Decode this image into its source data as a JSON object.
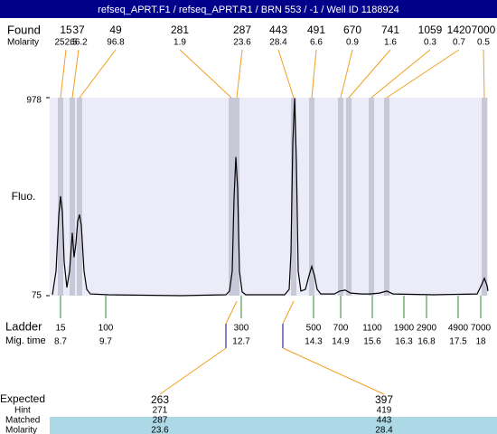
{
  "chart_data": {
    "type": "line",
    "title": "refseq_APRT.F1 / refseq_APRT.R1 / BRN 553 / -1 / Well ID 1188924",
    "y_label": "Fluo.",
    "ylim": [
      75,
      978
    ],
    "yticks": [
      75,
      978
    ],
    "xlim": [
      8.46,
      18.16
    ],
    "xticks": [
      8.7,
      9.7,
      12.7,
      14.3,
      14.9,
      15.6,
      16.3,
      16.8,
      17.5,
      18
    ],
    "color": "#000000",
    "x": [
      8.52,
      8.6,
      8.66,
      8.7,
      8.74,
      8.78,
      8.84,
      8.9,
      8.96,
      9.0,
      9.04,
      9.08,
      9.12,
      9.16,
      9.22,
      9.28,
      9.36,
      9.76,
      11.36,
      12.36,
      12.44,
      12.5,
      12.54,
      12.58,
      12.62,
      12.66,
      12.72,
      12.8,
      13.66,
      13.76,
      13.8,
      13.84,
      13.88,
      13.92,
      13.96,
      14.02,
      14.12,
      14.2,
      14.26,
      14.32,
      14.38,
      14.46,
      14.76,
      14.88,
      15.0,
      15.12,
      15.36,
      15.56,
      15.76,
      15.92,
      16.06,
      16.96,
      17.92,
      18.02,
      18.08,
      18.14,
      18.16
    ],
    "values": [
      79,
      187,
      437,
      529,
      458,
      229,
      112,
      187,
      362,
      250,
      312,
      416,
      445,
      395,
      187,
      104,
      83,
      79,
      75,
      79,
      96,
      187,
      520,
      707,
      562,
      187,
      92,
      79,
      79,
      104,
      271,
      770,
      975,
      687,
      187,
      96,
      104,
      167,
      208,
      167,
      104,
      83,
      83,
      96,
      100,
      87,
      83,
      83,
      87,
      96,
      83,
      79,
      83,
      125,
      154,
      121,
      96
    ],
    "found": {
      "label": "Found",
      "sizes": [
        15,
        37,
        49,
        281,
        287,
        443,
        491,
        670,
        741,
        1059,
        1420,
        7000
      ],
      "molarity_label": "Molarity",
      "molarity": [
        252.5,
        66.2,
        96.8,
        1.9,
        23.6,
        28.4,
        6.6,
        0.9,
        1.6,
        0.3,
        0.7,
        0.5
      ],
      "x": [
        8.7,
        8.96,
        9.12,
        12.48,
        12.6,
        13.86,
        14.26,
        14.9,
        15.08,
        15.58,
        15.92,
        18.08
      ],
      "color": "#c8c8d8"
    },
    "ladder": {
      "label": "Ladder",
      "sizes": [
        15,
        100,
        300,
        500,
        700,
        1100,
        1900,
        2900,
        4900,
        7000
      ],
      "time_label": "Mig. time",
      "color": "#2e8b2e"
    },
    "expected": {
      "label": "Expected",
      "values": [
        263,
        397
      ],
      "hint_label": "Hint",
      "hint": [
        271,
        419
      ],
      "matched_label": "Matched",
      "matched": [
        287,
        443
      ],
      "molarity_label": "Molarity",
      "molarity": [
        23.6,
        28.4
      ]
    }
  }
}
